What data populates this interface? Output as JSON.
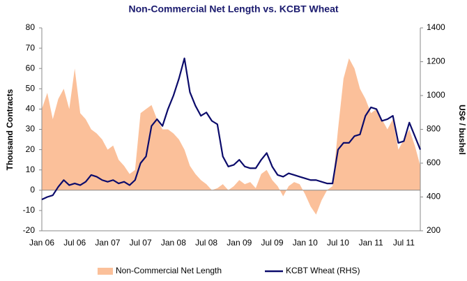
{
  "chart_data": {
    "type": "area-line",
    "title": "Non-Commercial Net Length vs. KCBT Wheat",
    "ylabel": "Thousand Contracts",
    "y2label": "US¢ / bushel",
    "categories": [
      "Jan 06",
      null,
      null,
      null,
      null,
      null,
      "Jul 06",
      null,
      null,
      null,
      null,
      null,
      "Jan 07",
      null,
      null,
      null,
      null,
      null,
      "Jul 07",
      null,
      null,
      null,
      null,
      null,
      "Jan 08",
      null,
      null,
      null,
      null,
      null,
      "Jul 08",
      null,
      null,
      null,
      null,
      null,
      "Jan 09",
      null,
      null,
      null,
      null,
      null,
      "Jul 09",
      null,
      null,
      null,
      null,
      null,
      "Jan 10",
      null,
      null,
      null,
      null,
      null,
      "Jul 10",
      null,
      null,
      null,
      null,
      null,
      "Jan 11",
      null,
      null,
      null,
      null,
      null,
      "Jul 11",
      null,
      null,
      null
    ],
    "series": [
      {
        "name": "Non-Commercial Net Length",
        "kind": "area",
        "color": "#fbc09a",
        "values": [
          40,
          48,
          35,
          45,
          50,
          40,
          60,
          38,
          35,
          30,
          28,
          25,
          20,
          22,
          15,
          12,
          8,
          10,
          38,
          40,
          42,
          35,
          30,
          30,
          28,
          25,
          20,
          12,
          8,
          5,
          3,
          0,
          1,
          3,
          0,
          2,
          5,
          3,
          4,
          1,
          8,
          10,
          5,
          2,
          -3,
          2,
          4,
          3,
          -2,
          -8,
          -12,
          -5,
          0,
          2,
          30,
          55,
          65,
          60,
          50,
          45,
          38,
          40,
          35,
          30,
          35,
          20,
          25,
          30,
          22,
          12
        ]
      },
      {
        "name": "KCBT Wheat (RHS)",
        "kind": "line",
        "axis": "y2",
        "color": "#0b0b6b",
        "values": [
          385,
          400,
          410,
          460,
          500,
          470,
          480,
          470,
          490,
          530,
          520,
          500,
          490,
          500,
          480,
          490,
          470,
          500,
          600,
          640,
          820,
          860,
          820,
          920,
          1000,
          1100,
          1220,
          1020,
          940,
          880,
          900,
          850,
          830,
          640,
          580,
          590,
          620,
          580,
          570,
          570,
          620,
          660,
          580,
          530,
          520,
          540,
          530,
          520,
          510,
          500,
          500,
          490,
          480,
          480,
          680,
          720,
          720,
          760,
          770,
          880,
          930,
          920,
          850,
          860,
          880,
          720,
          730,
          840,
          760,
          680
        ]
      }
    ],
    "ylim": [
      -20,
      80
    ],
    "yticks": [
      -20,
      -10,
      0,
      10,
      20,
      30,
      40,
      50,
      60,
      70,
      80
    ],
    "y2lim": [
      200,
      1400
    ],
    "y2ticks": [
      200,
      400,
      600,
      800,
      1000,
      1200,
      1400
    ],
    "legend": "bottom"
  }
}
